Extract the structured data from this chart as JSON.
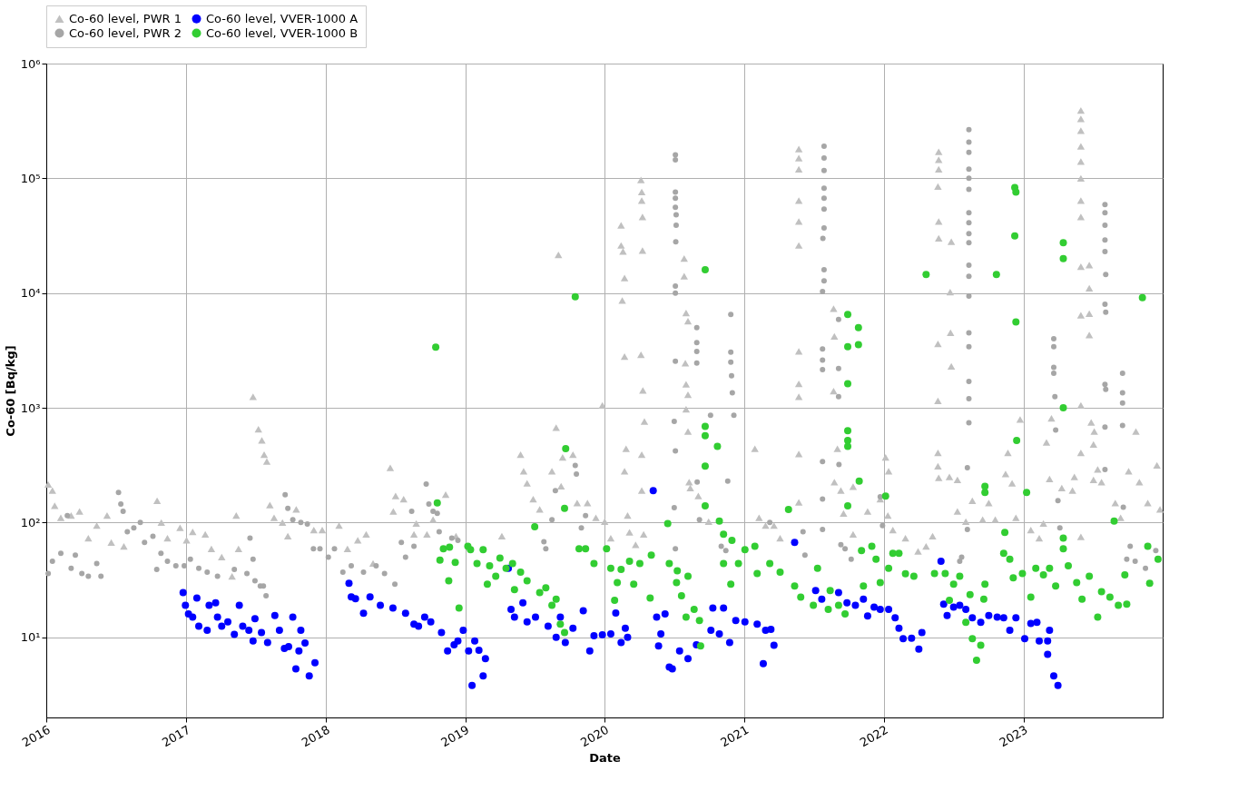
{
  "chart_data": {
    "type": "scatter",
    "xlabel": "Date",
    "ylabel": "Co-60 [Bq/kg]",
    "log": "y",
    "grid": true,
    "legend": "top",
    "xlim": [
      "2016-01-01",
      "2023-12-31"
    ],
    "xticks": [
      "2016",
      "2017",
      "2018",
      "2019",
      "2020",
      "2021",
      "2022",
      "2023"
    ],
    "ylim": [
      2,
      1000000
    ],
    "yticks": [
      {
        "value": 10,
        "label": "10¹"
      },
      {
        "value": 100,
        "label": "10²"
      },
      {
        "value": 1000,
        "label": "10³"
      },
      {
        "value": 10000,
        "label": "10⁴"
      },
      {
        "value": 100000,
        "label": "10⁵"
      },
      {
        "value": 1000000,
        "label": "10⁶"
      }
    ],
    "series": [
      {
        "name": "Co-60 level, PWR 1",
        "color": "#c0c0c0",
        "marker": "triangle",
        "x": [
          "2016-01-06",
          "2016-01-17",
          "2016-01-23",
          "2016-02-08",
          "2016-03-06",
          "2016-03-28",
          "2016-04-20",
          "2016-05-12",
          "2016-06-08",
          "2016-06-19",
          "2016-07-22",
          "2016-10-17",
          "2016-10-28",
          "2016-11-13",
          "2016-12-16",
          "2017-01-02",
          "2017-01-18",
          "2017-02-20",
          "2017-03-08",
          "2017-04-04",
          "2017-05-01",
          "2017-05-12",
          "2017-05-18",
          "2017-06-25",
          "2017-07-09",
          "2017-07-18",
          "2017-07-24",
          "2017-07-31",
          "2017-08-08",
          "2017-08-19",
          "2017-09-10",
          "2017-09-24",
          "2017-10-16",
          "2017-12-01",
          "2017-12-23",
          "2018-02-05",
          "2018-02-27",
          "2018-03-26",
          "2018-04-17",
          "2018-05-05",
          "2018-06-19",
          "2018-06-27",
          "2018-07-03",
          "2018-07-24",
          "2018-08-20",
          "2018-08-26",
          "2018-09-23",
          "2018-10-09",
          "2018-11-11",
          "2018-12-08",
          "2019-04-07",
          "2019-05-26",
          "2019-06-03",
          "2019-06-12",
          "2019-06-28",
          "2019-07-15",
          "2019-08-16",
          "2019-08-27",
          "2019-09-02",
          "2019-09-09",
          "2019-09-13",
          "2019-10-10",
          "2019-10-21",
          "2019-11-17",
          "2019-12-09",
          "2019-12-26",
          "2020-01-01",
          "2020-01-17",
          "2020-02-13",
          "2020-02-13",
          "2020-02-18",
          "2020-02-22",
          "2020-02-16",
          "2020-02-22",
          "2020-02-26",
          "2020-02-22",
          "2020-03-01",
          "2020-03-06",
          "2020-03-22",
          "2020-04-05",
          "2020-04-07",
          "2020-04-07",
          "2020-04-09",
          "2020-04-09",
          "2020-04-05",
          "2020-04-10",
          "2020-04-14",
          "2020-04-07",
          "2020-04-07",
          "2020-04-12",
          "2020-07-27",
          "2020-07-27",
          "2020-08-01",
          "2020-08-06",
          "2020-07-30",
          "2020-08-01",
          "2020-08-06",
          "2020-08-01",
          "2020-08-06",
          "2020-08-09",
          "2020-08-12",
          "2020-09-02",
          "2020-09-29",
          "2021-01-28",
          "2021-02-08",
          "2021-02-25",
          "2021-03-19",
          "2021-04-04",
          "2021-05-23",
          "2021-05-23",
          "2021-05-23",
          "2021-05-23",
          "2021-05-23",
          "2021-05-23",
          "2021-05-23",
          "2021-05-23",
          "2021-05-23",
          "2021-05-23",
          "2021-05-23",
          "2021-08-22",
          "2021-08-24",
          "2021-08-22",
          "2021-09-01",
          "2021-08-24",
          "2021-09-10",
          "2021-09-17",
          "2021-10-12",
          "2021-10-12",
          "2021-11-19",
          "2021-12-22",
          "2022-01-05",
          "2022-01-13",
          "2022-01-11",
          "2022-01-24",
          "2022-02-26",
          "2022-03-31",
          "2022-04-21",
          "2022-05-08",
          "2022-05-24",
          "2022-05-24",
          "2022-05-24",
          "2022-05-22",
          "2022-05-24",
          "2022-05-24",
          "2022-05-22",
          "2022-05-22",
          "2022-05-22",
          "2022-05-22",
          "2022-05-24",
          "2022-06-23",
          "2022-06-24",
          "2022-06-26",
          "2022-06-26",
          "2022-06-21",
          "2022-07-12",
          "2022-07-12",
          "2022-08-03",
          "2022-08-20",
          "2022-09-16",
          "2022-10-02",
          "2022-10-19",
          "2022-11-15",
          "2022-11-21",
          "2022-12-02",
          "2022-12-12",
          "2022-12-23",
          "2023-01-20",
          "2023-02-11",
          "2023-02-22",
          "2023-03-02",
          "2023-03-10",
          "2023-03-15",
          "2023-04-11",
          "2023-05-09",
          "2023-05-14",
          "2023-05-31",
          "2023-05-31",
          "2023-05-31",
          "2023-05-31",
          "2023-05-31",
          "2023-05-31",
          "2023-05-31",
          "2023-05-31",
          "2023-05-31",
          "2023-05-31",
          "2023-05-31",
          "2023-05-31",
          "2023-05-31",
          "2023-06-22",
          "2023-06-22",
          "2023-06-22",
          "2023-06-22",
          "2023-06-27",
          "2023-07-03",
          "2023-07-05",
          "2023-07-03",
          "2023-07-14",
          "2023-07-24",
          "2023-08-29",
          "2023-09-12",
          "2023-10-03",
          "2023-10-22",
          "2023-10-31",
          "2023-11-22",
          "2023-12-16",
          "2023-12-24"
        ],
        "values": [
          215,
          190,
          140,
          110,
          115,
          125,
          73,
          94,
          115,
          67,
          62,
          155,
          100,
          73,
          90,
          70,
          83,
          79,
          59,
          50,
          34,
          115,
          59,
          1250,
          650,
          520,
          390,
          340,
          142,
          110,
          100,
          76,
          130,
          86,
          86,
          94,
          59,
          70,
          79,
          44,
          300,
          125,
          170,
          160,
          79,
          98,
          79,
          106,
          175,
          76,
          76,
          390,
          280,
          220,
          160,
          130,
          280,
          670,
          21500,
          207,
          370,
          390,
          148,
          148,
          110,
          1050,
          102,
          73,
          39000,
          26000,
          23000,
          13500,
          8600,
          2800,
          440,
          280,
          115,
          82,
          64,
          97000,
          76000,
          64000,
          46000,
          23500,
          2900,
          1420,
          760,
          390,
          190,
          79,
          20000,
          14000,
          6700,
          5700,
          2450,
          1600,
          1300,
          970,
          620,
          225,
          200,
          170,
          102,
          440,
          110,
          94,
          94,
          73,
          180000,
          150000,
          120000,
          64000,
          42000,
          26000,
          3100,
          1620,
          1250,
          395,
          150,
          7300,
          4200,
          1400,
          440,
          225,
          190,
          120,
          205,
          79,
          125,
          160,
          370,
          280,
          115,
          86,
          73,
          56,
          62,
          76,
          170000,
          145000,
          120000,
          85000,
          42000,
          30000,
          3600,
          1150,
          405,
          310,
          245,
          10200,
          4500,
          2300,
          28000,
          250,
          235,
          125,
          102,
          155,
          106,
          148,
          106,
          265,
          405,
          220,
          110,
          790,
          86,
          73,
          98,
          500,
          240,
          810,
          200,
          190,
          250,
          390000,
          330000,
          260000,
          190000,
          140000,
          100000,
          64000,
          46000,
          17000,
          6400,
          1050,
          405,
          75,
          17500,
          11000,
          6600,
          4300,
          745,
          480,
          620,
          235,
          290,
          225,
          148,
          110,
          280,
          620,
          225,
          148,
          315,
          130
        ]
      },
      {
        "name": "Co-60 level, PWR 2",
        "color": "#a6a6a6",
        "marker": "circle",
        "x": [
          "2016-01-06",
          "2016-01-17",
          "2016-02-08",
          "2016-02-25",
          "2016-03-06",
          "2016-03-17",
          "2016-04-03",
          "2016-04-20",
          "2016-05-12",
          "2016-05-23",
          "2016-07-08",
          "2016-07-14",
          "2016-07-20",
          "2016-07-31",
          "2016-08-17",
          "2016-09-03",
          "2016-09-14",
          "2016-10-06",
          "2016-10-16",
          "2016-10-27",
          "2016-11-13",
          "2016-12-05",
          "2016-12-27",
          "2017-01-12",
          "2017-02-03",
          "2017-02-25",
          "2017-03-24",
          "2017-05-07",
          "2017-06-09",
          "2017-06-17",
          "2017-06-25",
          "2017-06-30",
          "2017-07-14",
          "2017-07-22",
          "2017-07-29",
          "2017-09-17",
          "2017-09-24",
          "2017-10-07",
          "2017-10-28",
          "2017-11-14",
          "2017-11-30",
          "2017-12-17",
          "2018-01-08",
          "2018-01-24",
          "2018-02-15",
          "2018-03-09",
          "2018-04-10",
          "2018-05-13",
          "2018-06-04",
          "2018-07-01",
          "2018-07-18",
          "2018-07-29",
          "2018-08-14",
          "2018-08-20",
          "2018-09-21",
          "2018-09-28",
          "2018-10-09",
          "2018-10-20",
          "2018-10-25",
          "2018-11-27",
          "2018-12-13",
          "2019-07-26",
          "2019-07-31",
          "2019-08-16",
          "2019-08-25",
          "2019-10-16",
          "2019-10-19",
          "2019-11-01",
          "2019-11-12",
          "2020-07-04",
          "2020-07-04",
          "2020-07-04",
          "2020-07-04",
          "2020-07-04",
          "2020-07-06",
          "2020-07-06",
          "2020-07-05",
          "2020-07-04",
          "2020-07-04",
          "2020-07-04",
          "2020-07-01",
          "2020-07-04",
          "2020-07-01",
          "2020-07-04",
          "2020-08-29",
          "2020-08-29",
          "2020-08-29",
          "2020-08-29",
          "2020-08-30",
          "2020-09-05",
          "2020-10-04",
          "2020-11-18",
          "2020-11-26",
          "2020-11-26",
          "2020-11-26",
          "2020-11-28",
          "2020-11-30",
          "2020-12-04",
          "2020-11-01",
          "2020-11-13",
          "2021-03-08",
          "2021-06-03",
          "2021-06-08",
          "2021-07-28",
          "2021-07-28",
          "2021-07-28",
          "2021-07-28",
          "2021-07-28",
          "2021-07-28",
          "2021-07-28",
          "2021-07-25",
          "2021-07-28",
          "2021-07-28",
          "2021-07-24",
          "2021-07-24",
          "2021-07-24",
          "2021-07-24",
          "2021-07-24",
          "2021-07-24",
          "2021-07-24",
          "2021-09-04",
          "2021-09-04",
          "2021-09-04",
          "2021-09-05",
          "2021-09-10",
          "2021-09-21",
          "2021-10-07",
          "2021-12-22",
          "2021-12-28",
          "2022-07-18",
          "2022-07-23",
          "2022-08-11",
          "2022-08-11",
          "2022-08-11",
          "2022-08-11",
          "2022-08-11",
          "2022-08-11",
          "2022-08-11",
          "2022-08-11",
          "2022-08-11",
          "2022-08-11",
          "2022-08-11",
          "2022-08-11",
          "2022-08-11",
          "2022-08-11",
          "2022-08-11",
          "2022-08-11",
          "2022-08-11",
          "2022-08-11",
          "2022-08-07",
          "2022-08-07",
          "2023-03-21",
          "2023-03-21",
          "2023-03-21",
          "2023-03-21",
          "2023-03-24",
          "2023-03-26",
          "2023-04-06",
          "2023-04-01",
          "2023-08-02",
          "2023-08-02",
          "2023-08-02",
          "2023-08-02",
          "2023-08-02",
          "2023-08-04",
          "2023-08-02",
          "2023-08-04",
          "2023-08-02",
          "2023-08-04",
          "2023-08-02",
          "2023-08-02",
          "2023-09-17",
          "2023-09-17",
          "2023-09-17",
          "2023-09-17",
          "2023-09-19",
          "2023-09-28",
          "2023-10-07",
          "2023-10-20",
          "2023-11-16",
          "2023-12-13"
        ],
        "values": [
          36,
          46,
          54,
          115,
          40,
          52,
          36,
          34,
          44,
          34,
          183,
          145,
          125,
          83,
          90,
          100,
          67,
          76,
          39,
          54,
          46,
          42,
          42,
          48,
          40,
          37,
          34,
          39,
          36,
          73,
          48,
          31,
          28,
          28,
          23,
          175,
          133,
          106,
          100,
          97,
          59,
          59,
          50,
          59,
          37,
          42,
          37,
          42,
          36,
          29,
          67,
          50,
          125,
          62,
          216,
          145,
          125,
          120,
          83,
          73,
          70,
          68,
          59,
          106,
          190,
          315,
          265,
          90,
          115,
          160000,
          145000,
          76000,
          67000,
          56000,
          48000,
          39000,
          28000,
          11500,
          10000,
          2550,
          760,
          420,
          135,
          59,
          5000,
          3700,
          3100,
          2450,
          225,
          106,
          860,
          230,
          6500,
          3050,
          2500,
          1900,
          1350,
          860,
          62,
          57,
          100,
          83,
          52,
          190000,
          150000,
          117000,
          82000,
          67000,
          54000,
          37000,
          30000,
          16000,
          12800,
          10300,
          3250,
          2600,
          2150,
          340,
          160,
          87,
          5900,
          2200,
          1250,
          320,
          64,
          59,
          48,
          168,
          94,
          46,
          50,
          266000,
          207000,
          168000,
          120000,
          100000,
          80000,
          50000,
          41000,
          33000,
          27500,
          17500,
          14000,
          9400,
          4500,
          3400,
          1700,
          1200,
          740,
          300,
          87,
          4000,
          3400,
          2250,
          2000,
          1250,
          640,
          90,
          155,
          59000,
          50000,
          39000,
          29000,
          23000,
          14500,
          8000,
          6800,
          1600,
          1450,
          680,
          290,
          2000,
          1350,
          1100,
          700,
          136,
          48,
          62,
          46,
          40,
          57
        ]
      },
      {
        "name": "Co-60 level, VVER-1000 A",
        "color": "#0000ff",
        "marker": "circle",
        "x": [
          "2016-12-24",
          "2016-12-30",
          "2017-01-07",
          "2017-01-18",
          "2017-01-29",
          "2017-02-03",
          "2017-02-25",
          "2017-03-02",
          "2017-03-19",
          "2017-03-24",
          "2017-04-04",
          "2017-04-20",
          "2017-05-07",
          "2017-05-20",
          "2017-05-29",
          "2017-06-14",
          "2017-06-25",
          "2017-06-30",
          "2017-07-17",
          "2017-08-02",
          "2017-08-21",
          "2017-09-02",
          "2017-09-15",
          "2017-09-26",
          "2017-10-07",
          "2017-10-15",
          "2017-10-23",
          "2017-10-28",
          "2017-11-08",
          "2017-11-19",
          "2017-12-04",
          "2018-03-03",
          "2018-03-09",
          "2018-03-20",
          "2018-04-10",
          "2018-04-27",
          "2018-05-24",
          "2018-06-26",
          "2018-07-29",
          "2018-08-20",
          "2018-09-01",
          "2018-09-17",
          "2018-10-03",
          "2018-10-31",
          "2018-11-16",
          "2018-12-03",
          "2018-12-13",
          "2018-12-27",
          "2019-01-10",
          "2019-01-19",
          "2019-01-26",
          "2019-02-06",
          "2019-02-17",
          "2019-02-23",
          "2019-04-24",
          "2019-05-01",
          "2019-05-10",
          "2019-06-01",
          "2019-06-12",
          "2019-07-04",
          "2019-08-06",
          "2019-08-27",
          "2019-09-07",
          "2019-09-20",
          "2019-10-10",
          "2019-11-06",
          "2019-11-23",
          "2019-12-04",
          "2019-12-26",
          "2020-01-17",
          "2020-01-30",
          "2020-02-13",
          "2020-02-24",
          "2020-03-01",
          "2020-05-07",
          "2020-05-16",
          "2020-05-21",
          "2020-05-27",
          "2020-06-07",
          "2020-06-18",
          "2020-06-26",
          "2020-07-15",
          "2020-08-06",
          "2020-08-28",
          "2020-10-05",
          "2020-10-10",
          "2020-10-27",
          "2020-11-07",
          "2020-11-23",
          "2020-12-09",
          "2021-01-02",
          "2021-02-03",
          "2021-02-19",
          "2021-02-25",
          "2021-03-11",
          "2021-03-19",
          "2021-05-12",
          "2021-07-06",
          "2021-07-22",
          "2021-09-04",
          "2021-09-26",
          "2021-10-18",
          "2021-11-08",
          "2021-11-19",
          "2021-12-06",
          "2021-12-22",
          "2022-01-13",
          "2022-01-30",
          "2022-02-09",
          "2022-02-20",
          "2022-03-14",
          "2022-04-02",
          "2022-04-10",
          "2022-05-30",
          "2022-06-06",
          "2022-06-15",
          "2022-07-02",
          "2022-07-18",
          "2022-08-03",
          "2022-08-20",
          "2022-09-11",
          "2022-10-02",
          "2022-10-24",
          "2022-11-10",
          "2022-11-26",
          "2022-12-12",
          "2023-01-04",
          "2023-01-20",
          "2023-02-05",
          "2023-02-11",
          "2023-03-05",
          "2023-03-10",
          "2023-03-05",
          "2023-03-21",
          "2023-04-01"
        ],
        "values": [
          24.5,
          19,
          16,
          15,
          22,
          12.5,
          11.5,
          19,
          20,
          15,
          12.5,
          13.6,
          10.6,
          19,
          12.5,
          11.5,
          9.3,
          14.5,
          11,
          9,
          15.5,
          11.5,
          8,
          8.3,
          15,
          5.3,
          7.6,
          11.5,
          8.9,
          4.6,
          6,
          29.5,
          22.5,
          21.7,
          16.2,
          22.5,
          19,
          18,
          16.2,
          13,
          12.5,
          15,
          13.6,
          11,
          7.6,
          8.6,
          9.3,
          11.5,
          7.6,
          3.8,
          9.3,
          7.7,
          4.6,
          6.5,
          40,
          17.5,
          15,
          20,
          13.6,
          15,
          12.5,
          10,
          15,
          9,
          12,
          17,
          7.6,
          10.3,
          10.5,
          10.7,
          16.3,
          9,
          12,
          10,
          190,
          15,
          8.4,
          10.7,
          16,
          5.5,
          5.3,
          7.6,
          6.5,
          8.6,
          11.5,
          18,
          10.7,
          18,
          9,
          14,
          13.6,
          13,
          5.9,
          11.5,
          11.7,
          8.5,
          67,
          25.5,
          21.5,
          24.5,
          20,
          19,
          21.5,
          15.3,
          18.3,
          17.5,
          17.5,
          14.8,
          12,
          9.7,
          9.8,
          7.9,
          11,
          46,
          19.4,
          15.5,
          18.3,
          19,
          17.5,
          14.8,
          13.5,
          15.5,
          15,
          14.8,
          11.5,
          14.8,
          9.7,
          13.2,
          13.5,
          9.3,
          9.3,
          11.5,
          7.1,
          4.6,
          3.8
        ]
      },
      {
        "name": "Co-60 level, VVER-1000 B",
        "color": "#32cd32",
        "marker": "circle",
        "x": [
          "2018-10-16",
          "2018-10-20",
          "2018-10-27",
          "2018-11-05",
          "2018-11-19",
          "2018-11-21",
          "2018-12-06",
          "2018-12-16",
          "2019-01-08",
          "2019-01-15",
          "2019-02-01",
          "2019-02-17",
          "2019-02-28",
          "2019-03-06",
          "2019-03-22",
          "2019-04-02",
          "2019-04-18",
          "2019-05-05",
          "2019-05-10",
          "2019-05-26",
          "2019-06-12",
          "2019-07-02",
          "2019-07-15",
          "2019-07-31",
          "2019-08-16",
          "2019-08-27",
          "2019-09-07",
          "2019-09-18",
          "2019-09-21",
          "2019-09-18",
          "2019-10-16",
          "2019-10-26",
          "2019-11-12",
          "2019-12-04",
          "2020-01-06",
          "2020-01-17",
          "2020-02-03",
          "2020-01-27",
          "2020-02-13",
          "2020-03-17",
          "2020-03-06",
          "2020-04-02",
          "2020-04-29",
          "2020-05-02",
          "2020-06-18",
          "2020-06-14",
          "2020-07-07",
          "2020-07-09",
          "2020-07-20",
          "2020-08-06",
          "2020-08-01",
          "2020-08-22",
          "2020-09-05",
          "2020-09-08",
          "2020-09-20",
          "2020-09-20",
          "2020-09-20",
          "2020-10-22",
          "2020-09-20",
          "2020-09-20",
          "2020-10-27",
          "2020-11-07",
          "2020-11-29",
          "2020-11-07",
          "2020-11-26",
          "2020-12-16",
          "2021-01-02",
          "2021-01-28",
          "2021-02-03",
          "2021-03-08",
          "2021-04-04",
          "2021-04-26",
          "2021-05-12",
          "2021-05-28",
          "2021-06-30",
          "2021-07-11",
          "2021-08-08",
          "2021-08-13",
          "2021-09-04",
          "2021-09-21",
          "2021-09-28",
          "2021-09-28",
          "2021-09-28",
          "2021-09-28",
          "2021-09-28",
          "2021-09-28",
          "2021-09-28",
          "2021-10-26",
          "2021-10-26",
          "2021-10-28",
          "2021-11-03",
          "2021-11-08",
          "2021-11-30",
          "2021-12-11",
          "2021-12-22",
          "2022-01-05",
          "2022-01-13",
          "2022-01-24",
          "2022-02-09",
          "2022-02-26",
          "2022-03-20",
          "2022-04-21",
          "2022-05-13",
          "2022-06-10",
          "2022-06-21",
          "2022-07-02",
          "2022-07-18",
          "2022-08-03",
          "2022-08-14",
          "2022-08-20",
          "2022-09-11",
          "2022-08-31",
          "2022-09-19",
          "2022-09-22",
          "2022-09-22",
          "2022-09-22",
          "2022-10-22",
          "2022-11-10",
          "2022-11-13",
          "2022-11-26",
          "2022-12-09",
          "2022-12-12",
          "2022-12-09",
          "2022-12-12",
          "2022-12-14",
          "2022-12-05",
          "2022-12-29",
          "2023-01-09",
          "2023-01-20",
          "2023-02-02",
          "2023-02-22",
          "2023-03-10",
          "2023-03-26",
          "2023-04-15",
          "2023-04-15",
          "2023-04-15",
          "2023-04-15",
          "2023-04-15",
          "2023-04-28",
          "2023-05-20",
          "2023-06-03",
          "2023-06-22",
          "2023-07-14",
          "2023-07-24",
          "2023-08-15",
          "2023-09-06",
          "2023-09-28",
          "2023-08-26",
          "2023-09-23",
          "2023-11-08",
          "2023-11-22",
          "2023-11-27",
          "2023-12-19"
        ],
        "values": [
          3370,
          148,
          47,
          59,
          31,
          61,
          45,
          18,
          62,
          58,
          44,
          58,
          29,
          42,
          34,
          49,
          40,
          44,
          26,
          37,
          31,
          92,
          24.5,
          27,
          19,
          21.5,
          13,
          11,
          440,
          133,
          9300,
          59,
          59,
          44,
          59,
          40,
          30,
          21,
          39,
          29,
          46,
          44,
          22,
          52,
          44,
          98,
          30,
          38,
          23,
          34,
          15,
          17.5,
          14,
          8.4,
          16000,
          690,
          570,
          460,
          310,
          140,
          103,
          79,
          70,
          44,
          29,
          44,
          58,
          62,
          36,
          44,
          37,
          130,
          28,
          22.4,
          19,
          40,
          17.5,
          25.5,
          19,
          16,
          6500,
          3400,
          1620,
          630,
          520,
          460,
          140,
          5000,
          3550,
          230,
          57,
          28,
          62,
          48,
          30,
          170,
          40,
          54,
          54,
          35.7,
          34,
          14500,
          36,
          36,
          21,
          29,
          34,
          13.5,
          23.5,
          9.7,
          8.5,
          6.3,
          21.5,
          29,
          207,
          183,
          14500,
          54,
          82,
          48,
          83000,
          76000,
          31500,
          5600,
          520,
          33,
          36,
          183,
          22.4,
          40,
          35,
          40,
          28,
          27500,
          20000,
          1000,
          73,
          59,
          42,
          30,
          21.5,
          34,
          15,
          25,
          22.4,
          19,
          19.4,
          103,
          35,
          9100,
          62,
          29.5,
          48
        ]
      }
    ]
  }
}
